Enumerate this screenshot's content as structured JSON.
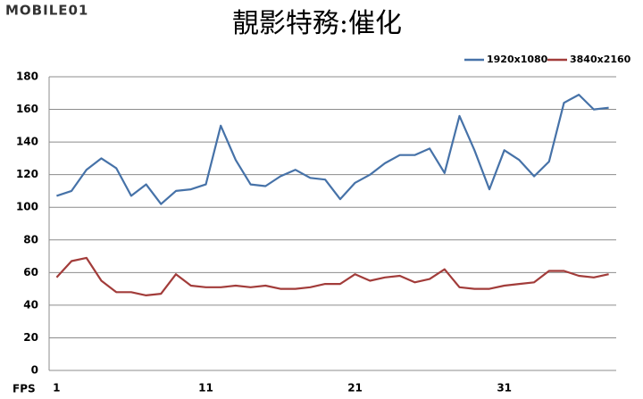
{
  "logo": "MOBILE01",
  "chart_data": {
    "type": "line",
    "title": "靚影特務:催化",
    "x_label": "FPS",
    "categories": [
      "1",
      null,
      null,
      null,
      null,
      null,
      null,
      null,
      null,
      null,
      "11",
      null,
      null,
      null,
      null,
      null,
      null,
      null,
      null,
      null,
      "21",
      null,
      null,
      null,
      null,
      null,
      null,
      null,
      null,
      null,
      "31",
      null,
      null,
      null,
      null,
      null,
      null,
      null
    ],
    "series": [
      {
        "name": "1920x1080",
        "color": "#4672a8",
        "values": [
          107,
          110,
          123,
          130,
          124,
          107,
          114,
          102,
          110,
          111,
          114,
          150,
          129,
          114,
          113,
          119,
          123,
          118,
          117,
          105,
          115,
          120,
          127,
          132,
          132,
          136,
          121,
          156,
          135,
          111,
          135,
          129,
          119,
          128,
          164,
          169,
          160,
          161
        ]
      },
      {
        "name": "3840x2160",
        "color": "#a23c3a",
        "values": [
          57,
          67,
          69,
          55,
          48,
          48,
          46,
          47,
          59,
          52,
          51,
          51,
          52,
          51,
          52,
          50,
          50,
          51,
          53,
          53,
          59,
          55,
          57,
          58,
          54,
          56,
          62,
          51,
          50,
          50,
          52,
          53,
          54,
          61,
          61,
          58,
          57,
          59
        ]
      }
    ],
    "ylim": [
      0,
      180
    ],
    "yticks": [
      0,
      20,
      40,
      60,
      80,
      100,
      120,
      140,
      160,
      180
    ],
    "grid": true,
    "legend": "top-right"
  }
}
